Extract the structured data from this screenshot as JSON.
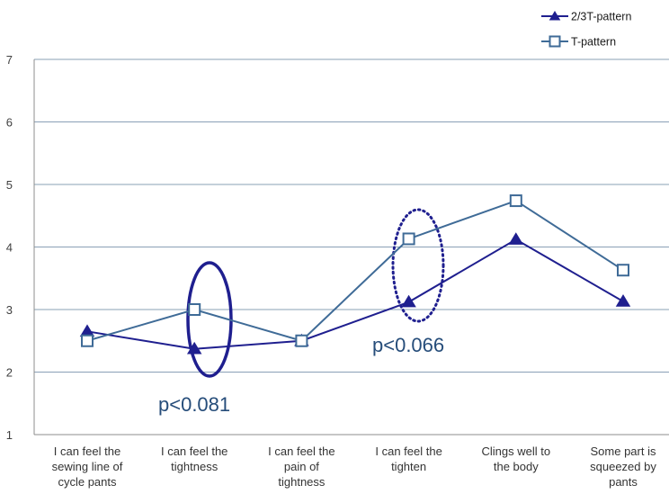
{
  "chart_data": {
    "type": "line",
    "categories": [
      [
        "I can feel the",
        "sewing line of",
        "cycle pants"
      ],
      [
        "I can feel the",
        "tightness"
      ],
      [
        "I can feel the",
        "pain of",
        "tightness"
      ],
      [
        "I can feel the",
        "tighten"
      ],
      [
        "Clings well to",
        "the body"
      ],
      [
        "Some part is",
        "squeezed by",
        "pants"
      ]
    ],
    "series": [
      {
        "name": "2/3T-pattern",
        "marker": "filled-triangle",
        "color": "#1f1f8f",
        "values": [
          2.65,
          2.37,
          2.5,
          3.12,
          4.12,
          3.13
        ]
      },
      {
        "name": "T-pattern",
        "marker": "open-square",
        "color": "#3f6b97",
        "values": [
          2.5,
          3.0,
          2.5,
          4.13,
          4.74,
          3.63
        ]
      }
    ],
    "ylim": [
      1,
      7
    ],
    "yticks": [
      1,
      2,
      3,
      4,
      5,
      6,
      7
    ],
    "grid": "horizontal",
    "legend_position": "top-right",
    "annotations": [
      {
        "text": "p<0.081",
        "category_index": 1,
        "style": "solid-ellipse",
        "color": "#1f1f8f"
      },
      {
        "text": "p<0.066",
        "category_index": 3,
        "style": "dotted-ellipse",
        "color": "#1f1f8f"
      }
    ]
  }
}
